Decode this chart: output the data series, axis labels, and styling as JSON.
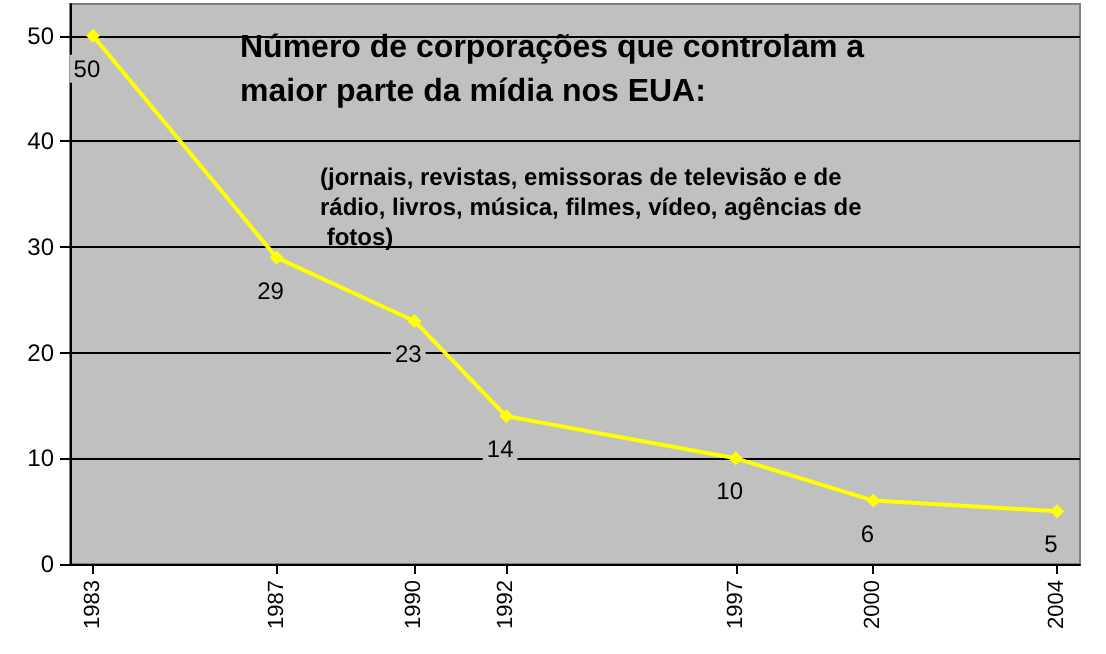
{
  "chart_data": {
    "type": "line",
    "title": "Número de corporações que controlam a maior parte da mídia nos EUA:",
    "subtitle": "(jornais, revistas, emissoras de televisão e de rádio, livros, música, filmes, vídeo, agências de fotos)",
    "x": [
      1983,
      1987,
      1990,
      1992,
      1997,
      2000,
      2004
    ],
    "values": [
      50,
      29,
      23,
      14,
      10,
      6,
      5
    ],
    "color": "#ffff00",
    "xlim": [
      1982.5,
      2004.5
    ],
    "xticks": [
      1983,
      1987,
      1990,
      1992,
      1997,
      2000,
      2004
    ],
    "ylim": [
      0,
      53
    ],
    "yticks": [
      0,
      10,
      20,
      30,
      40,
      50
    ],
    "grid": "y",
    "marker": "diamond",
    "line_style": "solid",
    "data_labels": true
  }
}
